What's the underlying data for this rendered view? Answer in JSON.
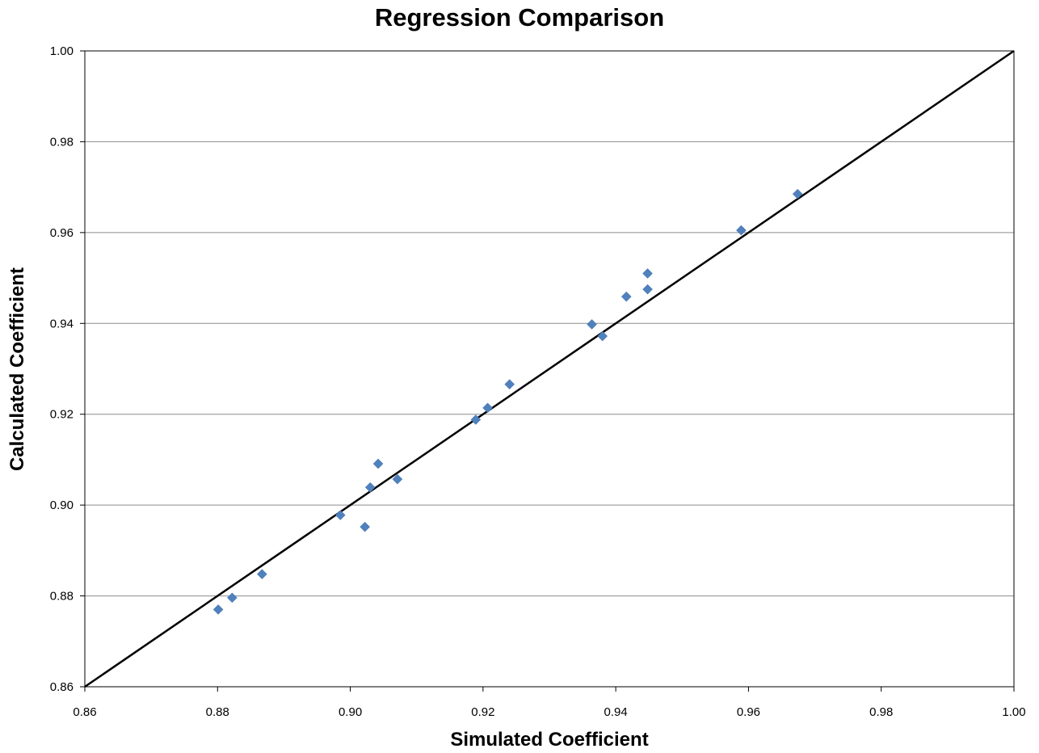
{
  "chart_data": {
    "type": "scatter",
    "title": "Regression Comparison",
    "xlabel": "Simulated Coefficient",
    "ylabel": "Calculated Coefficient",
    "xlim": [
      0.86,
      1.0
    ],
    "ylim": [
      0.86,
      1.0
    ],
    "xticks": [
      "0.86",
      "0.88",
      "0.90",
      "0.92",
      "0.94",
      "0.96",
      "0.98",
      "1.00"
    ],
    "yticks": [
      "0.86",
      "0.88",
      "0.90",
      "0.92",
      "0.94",
      "0.96",
      "0.98",
      "1.00"
    ],
    "grid": "horizontal",
    "legend": "none",
    "marker": "diamond",
    "colors": {
      "points": "#4F81BD",
      "reference_line": "#000000",
      "grid": "#8C8C8C"
    },
    "reference_line": {
      "from": [
        0.86,
        0.86
      ],
      "to": [
        1.0,
        1.0
      ]
    },
    "series": [
      {
        "points": [
          [
            0.8801,
            0.877
          ],
          [
            0.8822,
            0.8796
          ],
          [
            0.8867,
            0.8848
          ],
          [
            0.8985,
            0.8978
          ],
          [
            0.9022,
            0.8952
          ],
          [
            0.903,
            0.9039
          ],
          [
            0.9042,
            0.9091
          ],
          [
            0.9071,
            0.9057
          ],
          [
            0.9189,
            0.9188
          ],
          [
            0.9207,
            0.9214
          ],
          [
            0.924,
            0.9266
          ],
          [
            0.9364,
            0.9398
          ],
          [
            0.938,
            0.9372
          ],
          [
            0.9416,
            0.9459
          ],
          [
            0.9448,
            0.9475
          ],
          [
            0.9448,
            0.951
          ],
          [
            0.9589,
            0.9605
          ],
          [
            0.9674,
            0.9685
          ]
        ]
      }
    ]
  }
}
